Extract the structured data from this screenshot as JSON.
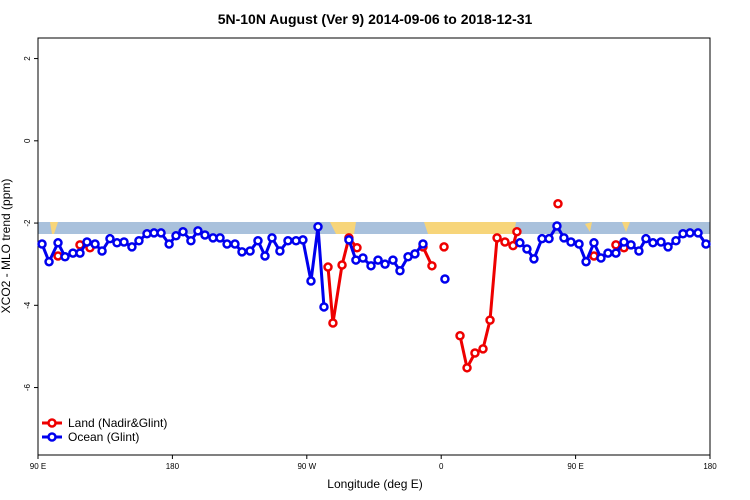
{
  "chart_data": {
    "type": "line",
    "title": "5N-10N August (Ver 9)   2014-09-06 to 2018-12-31",
    "xlabel": "Longitude (deg E)",
    "ylabel": "XCO2 - MLO trend (ppm)",
    "xlim": [
      90,
      540
    ],
    "xticks": [
      {
        "value": 90,
        "label": "90 E"
      },
      {
        "value": 180,
        "label": "180"
      },
      {
        "value": 270,
        "label": "90 W"
      },
      {
        "value": 360,
        "label": "0"
      },
      {
        "value": 450,
        "label": "90 E"
      },
      {
        "value": 540,
        "label": "180"
      }
    ],
    "ylim": [
      -7.64,
      2.5
    ],
    "yticks": [
      -6,
      -4,
      -2,
      0,
      2
    ],
    "legend": "bottom-left",
    "series": [
      {
        "name": "Land (Nadir&Glint)",
        "color": "#ee0000",
        "x": [
          103.4,
          null,
          118.1,
          124.8,
          null,
          284.2,
          287.5,
          293.6,
          298.2,
          303.6,
          null,
          347.8,
          353.8,
          null,
          361.9,
          null,
          372.6,
          377.3,
          382.6,
          388,
          392.7,
          397.4,
          402.7,
          408.1,
          410.7,
          null,
          438.2,
          null,
          462.3,
          null,
          477,
          482.4
        ],
        "values": [
          -2.8,
          null,
          -2.53,
          -2.6,
          null,
          -3.07,
          -4.43,
          -3.02,
          -2.36,
          -2.6,
          null,
          -2.58,
          -3.04,
          null,
          -2.58,
          null,
          -4.74,
          -5.52,
          -5.16,
          -5.06,
          -4.36,
          -2.36,
          -2.46,
          -2.55,
          -2.21,
          null,
          -1.53,
          null,
          -2.8,
          null,
          -2.53,
          -2.6
        ]
      },
      {
        "name": "Ocean (Glint)",
        "color": "#0000ee",
        "x": [
          92.7,
          97.4,
          103.4,
          108.1,
          113.4,
          118.1,
          122.8,
          128.2,
          132.9,
          138.2,
          142.9,
          147.6,
          152.9,
          157.6,
          163,
          167.7,
          172.4,
          177.8,
          182.4,
          187.1,
          192.4,
          197.1,
          201.8,
          207.2,
          211.9,
          216.6,
          221.9,
          226.6,
          232,
          237.3,
          242,
          246.7,
          252,
          257.4,
          262.8,
          267.4,
          272.8,
          277.5,
          281.5,
          null,
          298.2,
          302.9,
          307.6,
          313,
          317.7,
          322.4,
          327.7,
          332.4,
          337.8,
          342.4,
          347.8,
          null,
          362.5,
          null,
          412.7,
          417.4,
          422.1,
          427.5,
          432.2,
          437.5,
          442.2,
          446.9,
          452.3,
          457,
          462.3,
          467,
          471.7,
          477,
          482.4,
          487.1,
          492.4,
          497.1,
          501.8,
          507.2,
          511.9,
          517.2,
          521.9,
          526.6,
          532,
          537.3
        ],
        "values": [
          -2.51,
          -2.94,
          -2.48,
          -2.82,
          -2.73,
          -2.73,
          -2.46,
          -2.51,
          -2.68,
          -2.38,
          -2.48,
          -2.46,
          -2.58,
          -2.43,
          -2.26,
          -2.24,
          -2.24,
          -2.51,
          -2.31,
          -2.21,
          -2.43,
          -2.19,
          -2.29,
          -2.36,
          -2.36,
          -2.51,
          -2.51,
          -2.7,
          -2.68,
          -2.43,
          -2.8,
          -2.36,
          -2.68,
          -2.43,
          -2.43,
          -2.41,
          -3.41,
          -2.09,
          -4.04,
          null,
          -2.41,
          -2.9,
          -2.85,
          -3.04,
          -2.9,
          -3.0,
          -2.9,
          -3.16,
          -2.82,
          -2.75,
          -2.51,
          null,
          -3.36,
          null,
          -2.48,
          -2.63,
          -2.87,
          -2.38,
          -2.38,
          -2.07,
          -2.36,
          -2.46,
          -2.51,
          -2.94,
          -2.48,
          -2.85,
          -2.73,
          -2.73,
          -2.46,
          -2.53,
          -2.68,
          -2.38,
          -2.48,
          -2.46,
          -2.58,
          -2.43,
          -2.26,
          -2.24,
          -2.24,
          -2.51
        ]
      }
    ]
  }
}
